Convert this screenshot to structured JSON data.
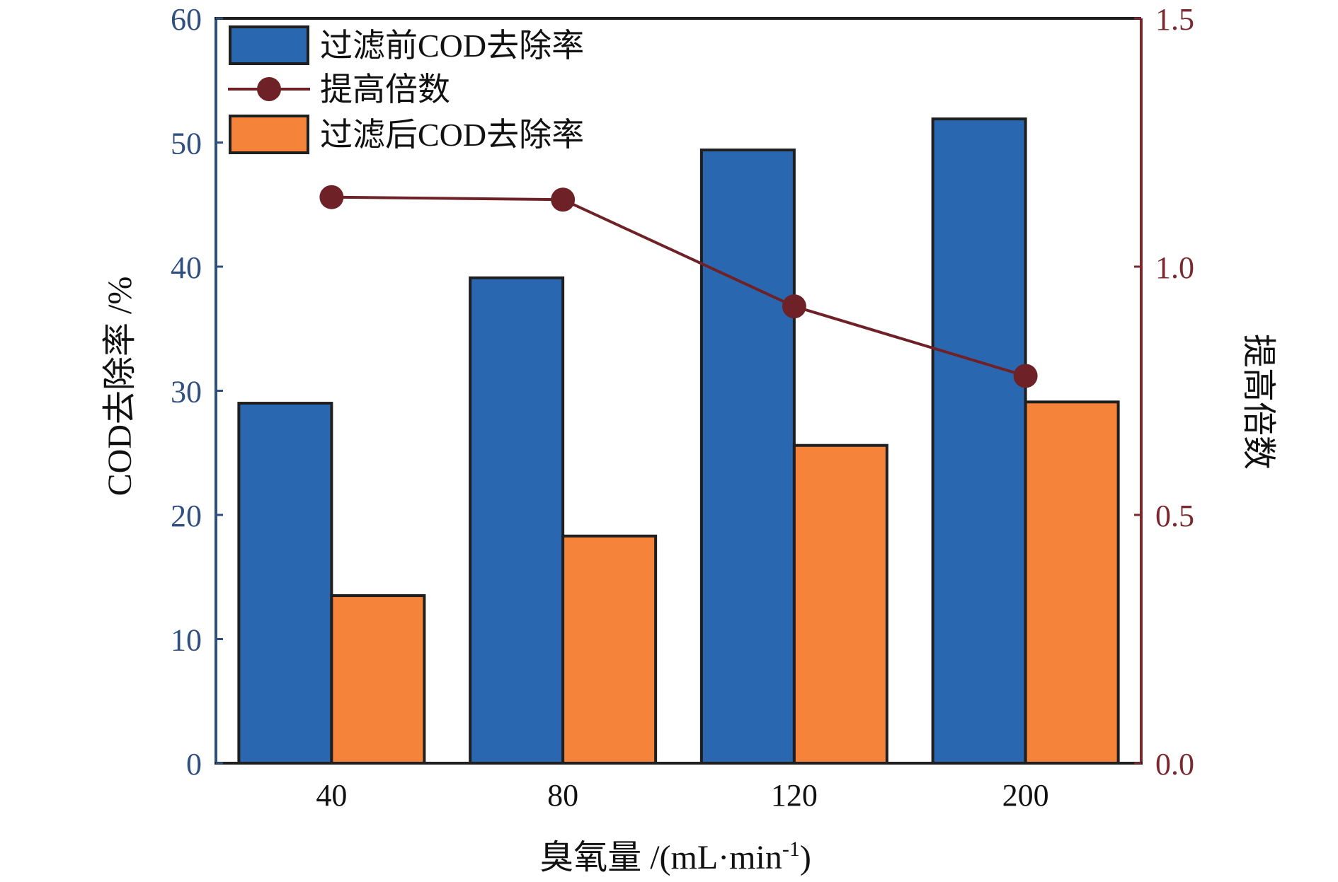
{
  "chart_data": {
    "type": "bar",
    "categories": [
      "40",
      "80",
      "120",
      "200"
    ],
    "xlabel": "臭氧量 /(mL·min",
    "xlabel_sup": "-1",
    "xlabel_close": ")",
    "ylabel": "COD去除率 /%",
    "ylabel_right": "提高倍数",
    "ylim": [
      0,
      60
    ],
    "yticks": [
      "0",
      "10",
      "20",
      "30",
      "40",
      "50",
      "60"
    ],
    "ylim_right": [
      0.0,
      1.5
    ],
    "yticks_right": [
      "0.0",
      "0.5",
      "1.0",
      "1.5"
    ],
    "grid": false,
    "legend_position": "top-left",
    "series": [
      {
        "name": "过滤前COD去除率",
        "type": "bar",
        "axis": "left",
        "values": [
          29.0,
          39.1,
          49.4,
          51.9
        ]
      },
      {
        "name": "提高倍数",
        "type": "line",
        "axis": "right",
        "values": [
          1.14,
          1.135,
          0.92,
          0.78
        ]
      },
      {
        "name": "过滤后COD去除率",
        "type": "bar",
        "axis": "left",
        "values": [
          13.5,
          18.3,
          25.6,
          29.1
        ]
      }
    ],
    "colors": {
      "bar_before": "#2a67b1",
      "bar_after": "#f5843a",
      "line": "#6e2227",
      "left_axis": "#2f4f80",
      "right_axis": "#7a2a2e",
      "frame": "#1f1f1f"
    }
  }
}
